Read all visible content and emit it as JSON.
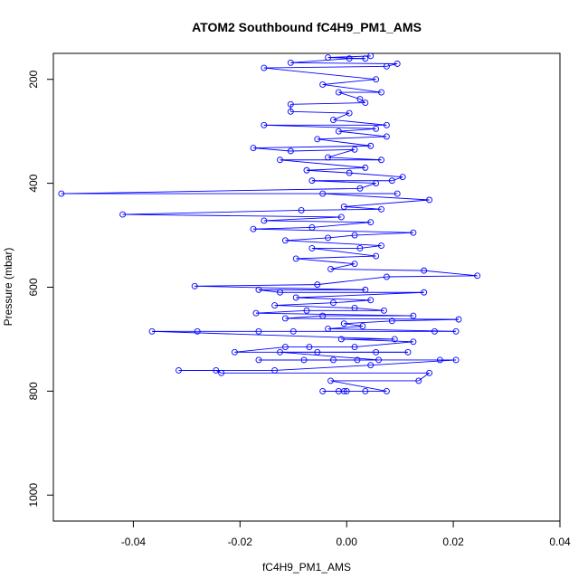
{
  "chart_data": {
    "type": "line",
    "title": "ATOM2 Southbound fC4H9_PM1_AMS",
    "xlabel": "fC4H9_PM1_AMS",
    "ylabel": "Pressure (mbar)",
    "xlim": [
      -0.055,
      0.04
    ],
    "ylim": [
      1050,
      150
    ],
    "y_inverted": true,
    "x_ticks": [
      -0.04,
      -0.02,
      0.0,
      0.02,
      0.04
    ],
    "x_tick_labels": [
      "-0.04",
      "-0.02",
      "0.00",
      "0.02",
      "0.04"
    ],
    "y_ticks": [
      200,
      400,
      600,
      800,
      1000
    ],
    "y_tick_labels": [
      "200",
      "400",
      "600",
      "800",
      "1000"
    ],
    "grid": false,
    "legend": "none",
    "series": [
      {
        "color": "#0000ff",
        "marker": "open-circle",
        "points": [
          {
            "x": -0.0015,
            "y": 800
          },
          {
            "x": -0.0005,
            "y": 800
          },
          {
            "x": 0.0,
            "y": 800
          },
          {
            "x": -0.0045,
            "y": 800
          },
          {
            "x": 0.0035,
            "y": 800
          },
          {
            "x": 0.0075,
            "y": 800
          },
          {
            "x": -0.003,
            "y": 780
          },
          {
            "x": 0.0135,
            "y": 780
          },
          {
            "x": 0.0155,
            "y": 765
          },
          {
            "x": -0.0235,
            "y": 765
          },
          {
            "x": -0.0245,
            "y": 760
          },
          {
            "x": -0.0315,
            "y": 760
          },
          {
            "x": -0.0135,
            "y": 760
          },
          {
            "x": 0.0045,
            "y": 750
          },
          {
            "x": 0.0205,
            "y": 740
          },
          {
            "x": 0.0175,
            "y": 740
          },
          {
            "x": -0.0165,
            "y": 740
          },
          {
            "x": -0.008,
            "y": 740
          },
          {
            "x": -0.0025,
            "y": 740
          },
          {
            "x": 0.002,
            "y": 740
          },
          {
            "x": 0.006,
            "y": 740
          },
          {
            "x": -0.0125,
            "y": 725
          },
          {
            "x": -0.0055,
            "y": 725
          },
          {
            "x": 0.0055,
            "y": 725
          },
          {
            "x": 0.0115,
            "y": 725
          },
          {
            "x": -0.021,
            "y": 725
          },
          {
            "x": -0.0115,
            "y": 715
          },
          {
            "x": -0.007,
            "y": 715
          },
          {
            "x": 0.0015,
            "y": 715
          },
          {
            "x": 0.0125,
            "y": 705
          },
          {
            "x": -0.001,
            "y": 700
          },
          {
            "x": 0.009,
            "y": 700
          },
          {
            "x": -0.0365,
            "y": 685
          },
          {
            "x": -0.028,
            "y": 685
          },
          {
            "x": -0.0165,
            "y": 685
          },
          {
            "x": -0.01,
            "y": 685
          },
          {
            "x": 0.0165,
            "y": 685
          },
          {
            "x": 0.0205,
            "y": 685
          },
          {
            "x": -0.0035,
            "y": 680
          },
          {
            "x": 0.003,
            "y": 675
          },
          {
            "x": -0.0005,
            "y": 670
          },
          {
            "x": 0.0085,
            "y": 665
          },
          {
            "x": 0.021,
            "y": 662
          },
          {
            "x": -0.0115,
            "y": 660
          },
          {
            "x": -0.0045,
            "y": 655
          },
          {
            "x": 0.0125,
            "y": 655
          },
          {
            "x": -0.017,
            "y": 650
          },
          {
            "x": -0.0075,
            "y": 645
          },
          {
            "x": 0.007,
            "y": 645
          },
          {
            "x": 0.0015,
            "y": 640
          },
          {
            "x": -0.0135,
            "y": 635
          },
          {
            "x": -0.0025,
            "y": 630
          },
          {
            "x": 0.0045,
            "y": 625
          },
          {
            "x": -0.0095,
            "y": 620
          },
          {
            "x": 0.0145,
            "y": 610
          },
          {
            "x": -0.0125,
            "y": 610
          },
          {
            "x": -0.0165,
            "y": 605
          },
          {
            "x": 0.0035,
            "y": 605
          },
          {
            "x": -0.0285,
            "y": 598
          },
          {
            "x": -0.0055,
            "y": 595
          },
          {
            "x": 0.0075,
            "y": 580
          },
          {
            "x": 0.0245,
            "y": 578
          },
          {
            "x": 0.0145,
            "y": 568
          },
          {
            "x": -0.003,
            "y": 565
          },
          {
            "x": 0.0015,
            "y": 555
          },
          {
            "x": -0.0095,
            "y": 545
          },
          {
            "x": 0.0055,
            "y": 540
          },
          {
            "x": -0.0065,
            "y": 525
          },
          {
            "x": 0.0025,
            "y": 525
          },
          {
            "x": 0.0065,
            "y": 520
          },
          {
            "x": -0.0115,
            "y": 510
          },
          {
            "x": -0.0035,
            "y": 505
          },
          {
            "x": 0.0015,
            "y": 500
          },
          {
            "x": 0.0125,
            "y": 495
          },
          {
            "x": -0.0175,
            "y": 488
          },
          {
            "x": -0.0065,
            "y": 485
          },
          {
            "x": 0.0045,
            "y": 475
          },
          {
            "x": -0.0155,
            "y": 472
          },
          {
            "x": -0.001,
            "y": 465
          },
          {
            "x": -0.042,
            "y": 460
          },
          {
            "x": -0.0085,
            "y": 452
          },
          {
            "x": 0.0065,
            "y": 450
          },
          {
            "x": -0.0005,
            "y": 445
          },
          {
            "x": 0.0155,
            "y": 432
          },
          {
            "x": -0.0045,
            "y": 420
          },
          {
            "x": 0.0095,
            "y": 420
          },
          {
            "x": -0.0535,
            "y": 420
          },
          {
            "x": 0.0025,
            "y": 410
          },
          {
            "x": 0.0055,
            "y": 400
          },
          {
            "x": -0.0065,
            "y": 395
          },
          {
            "x": 0.0085,
            "y": 395
          },
          {
            "x": 0.0105,
            "y": 388
          },
          {
            "x": 0.0005,
            "y": 380
          },
          {
            "x": -0.0075,
            "y": 375
          },
          {
            "x": 0.0035,
            "y": 370
          },
          {
            "x": -0.0125,
            "y": 355
          },
          {
            "x": 0.0065,
            "y": 355
          },
          {
            "x": -0.0035,
            "y": 350
          },
          {
            "x": 0.0015,
            "y": 335
          },
          {
            "x": -0.0105,
            "y": 338
          },
          {
            "x": -0.0175,
            "y": 332
          },
          {
            "x": 0.0045,
            "y": 328
          },
          {
            "x": -0.0055,
            "y": 315
          },
          {
            "x": 0.0075,
            "y": 310
          },
          {
            "x": -0.0015,
            "y": 300
          },
          {
            "x": 0.0055,
            "y": 295
          },
          {
            "x": -0.0155,
            "y": 288
          },
          {
            "x": 0.0075,
            "y": 288
          },
          {
            "x": -0.0025,
            "y": 278
          },
          {
            "x": 0.0005,
            "y": 265
          },
          {
            "x": -0.0105,
            "y": 262
          },
          {
            "x": -0.0105,
            "y": 248
          },
          {
            "x": 0.0035,
            "y": 245
          },
          {
            "x": 0.0025,
            "y": 238
          },
          {
            "x": -0.0015,
            "y": 225
          },
          {
            "x": 0.0065,
            "y": 225
          },
          {
            "x": -0.0045,
            "y": 210
          },
          {
            "x": 0.0055,
            "y": 200
          },
          {
            "x": -0.0155,
            "y": 178
          },
          {
            "x": 0.0075,
            "y": 175
          },
          {
            "x": 0.0095,
            "y": 170
          },
          {
            "x": -0.0105,
            "y": 168
          },
          {
            "x": 0.0005,
            "y": 160
          },
          {
            "x": 0.0035,
            "y": 160
          },
          {
            "x": -0.0035,
            "y": 158
          },
          {
            "x": 0.0045,
            "y": 155
          }
        ]
      }
    ]
  }
}
